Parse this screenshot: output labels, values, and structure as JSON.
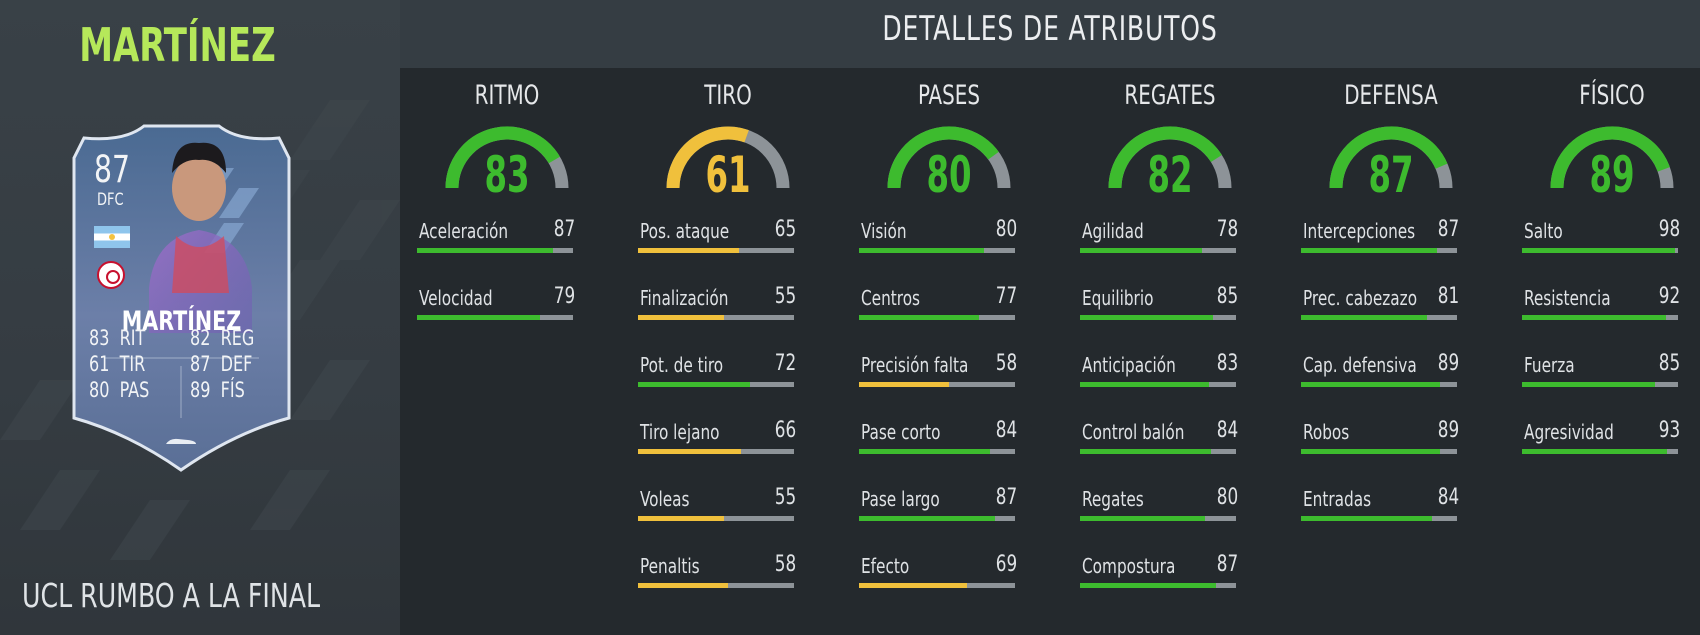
{
  "player": {
    "name": "MARTÍNEZ",
    "promo": "UCL RUMBO A LA FINAL"
  },
  "card": {
    "rating": "87",
    "position": "DFC",
    "name": "MARTÍNEZ",
    "nation_flag_icon": "argentina-flag-icon",
    "club_badge_icon": "ajax-badge-icon",
    "stats": [
      {
        "value": "83",
        "label": "RIT"
      },
      {
        "value": "61",
        "label": "TIR"
      },
      {
        "value": "80",
        "label": "PAS"
      },
      {
        "value": "82",
        "label": "REG"
      },
      {
        "value": "87",
        "label": "DEF"
      },
      {
        "value": "89",
        "label": "FÍS"
      }
    ]
  },
  "attributes": {
    "title": "DETALLES DE ATRIBUTOS",
    "colors": {
      "high": "#3dbb2e",
      "medium": "#f0c03c",
      "track": "#8d9398"
    },
    "categories": [
      {
        "name": "RITMO",
        "value": 83,
        "level": "high",
        "stats": [
          {
            "label": "Aceleración",
            "value": 87
          },
          {
            "label": "Velocidad",
            "value": 79
          }
        ]
      },
      {
        "name": "TIRO",
        "value": 61,
        "level": "medium",
        "stats": [
          {
            "label": "Pos. ataque",
            "value": 65
          },
          {
            "label": "Finalización",
            "value": 55
          },
          {
            "label": "Pot. de tiro",
            "value": 72
          },
          {
            "label": "Tiro lejano",
            "value": 66
          },
          {
            "label": "Voleas",
            "value": 55
          },
          {
            "label": "Penaltis",
            "value": 58
          }
        ]
      },
      {
        "name": "PASES",
        "value": 80,
        "level": "high",
        "stats": [
          {
            "label": "Visión",
            "value": 80
          },
          {
            "label": "Centros",
            "value": 77
          },
          {
            "label": "Precisión falta",
            "value": 58
          },
          {
            "label": "Pase corto",
            "value": 84
          },
          {
            "label": "Pase largo",
            "value": 87
          },
          {
            "label": "Efecto",
            "value": 69
          }
        ]
      },
      {
        "name": "REGATES",
        "value": 82,
        "level": "high",
        "stats": [
          {
            "label": "Agilidad",
            "value": 78
          },
          {
            "label": "Equilibrio",
            "value": 85
          },
          {
            "label": "Anticipación",
            "value": 83
          },
          {
            "label": "Control balón",
            "value": 84
          },
          {
            "label": "Regates",
            "value": 80
          },
          {
            "label": "Compostura",
            "value": 87
          }
        ]
      },
      {
        "name": "DEFENSA",
        "value": 87,
        "level": "high",
        "stats": [
          {
            "label": "Intercepciones",
            "value": 87
          },
          {
            "label": "Prec. cabezazo",
            "value": 81
          },
          {
            "label": "Cap. defensiva",
            "value": 89
          },
          {
            "label": "Robos",
            "value": 89
          },
          {
            "label": "Entradas",
            "value": 84
          }
        ]
      },
      {
        "name": "FÍSICO",
        "value": 89,
        "level": "high",
        "stats": [
          {
            "label": "Salto",
            "value": 98
          },
          {
            "label": "Resistencia",
            "value": 92
          },
          {
            "label": "Fuerza",
            "value": 85
          },
          {
            "label": "Agresividad",
            "value": 93
          }
        ]
      }
    ]
  }
}
